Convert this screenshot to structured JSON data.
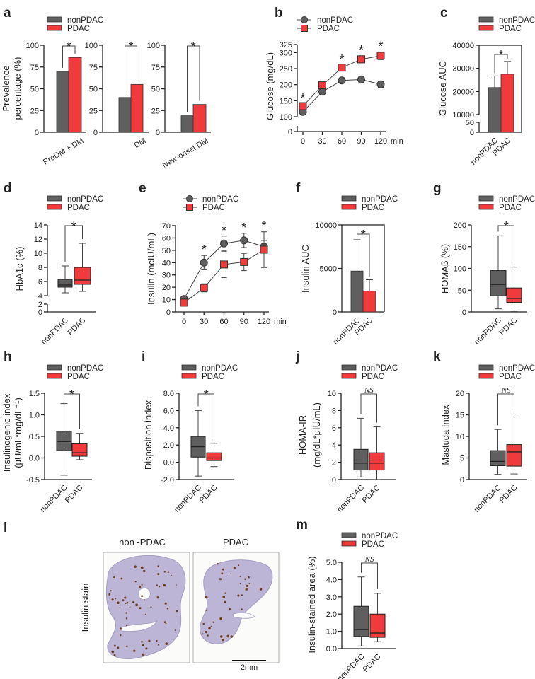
{
  "colors": {
    "nonPDAC": "#5f5f5f",
    "PDAC": "#f03a3c",
    "tissue": "#bcb5d6",
    "stain": "#6b3d22"
  },
  "legend": {
    "nonPDAC": "nonPDAC",
    "PDAC": "PDAC"
  },
  "chart_data": [
    {
      "panel": "a",
      "type": "bar",
      "ylabel": [
        "Prevalence",
        "percentage (%)"
      ],
      "ylim": [
        0,
        100
      ],
      "yticks": [
        "0",
        "25",
        "50",
        "75",
        "100"
      ],
      "categories": [
        "PreDM + DM",
        "DM",
        "New-onset DM"
      ],
      "series": [
        {
          "name": "nonPDAC",
          "values": [
            70,
            40,
            19
          ]
        },
        {
          "name": "PDAC",
          "values": [
            86,
            55,
            32
          ]
        }
      ],
      "significance": [
        "*",
        "*",
        "*"
      ]
    },
    {
      "panel": "b",
      "type": "line",
      "ylabel": [
        "Glucose (mg/dL)"
      ],
      "x": [
        0,
        30,
        60,
        90,
        120
      ],
      "xticks": [
        "0",
        "30",
        "60",
        "90",
        "120"
      ],
      "xunit": "min",
      "y_segments": [
        [
          0,
          10
        ],
        [
          100,
          325
        ]
      ],
      "yticks": [
        "0",
        "100",
        "150",
        "200",
        "250",
        "300",
        "325"
      ],
      "series": [
        {
          "name": "nonPDAC",
          "values": [
            115,
            178,
            213,
            216,
            201
          ],
          "err": [
            6,
            5,
            8,
            10,
            10
          ]
        },
        {
          "name": "PDAC",
          "values": [
            133,
            198,
            253,
            279,
            290
          ],
          "err": [
            7,
            5,
            8,
            11,
            12
          ]
        }
      ],
      "significance": [
        "*",
        "",
        "*",
        "*",
        "*"
      ]
    },
    {
      "panel": "c",
      "type": "bar",
      "ylabel": [
        "Glucose AUC"
      ],
      "y_segments": [
        [
          0,
          50
        ],
        [
          10000,
          40000
        ]
      ],
      "yticks": [
        "0",
        "50",
        "10000",
        "20000",
        "30000",
        "40000"
      ],
      "categories": [
        "nonPDAC",
        "PDAC"
      ],
      "values": [
        21700,
        27500
      ],
      "error": [
        5000,
        5500
      ],
      "significance": "*"
    },
    {
      "panel": "d",
      "type": "box",
      "ylabel": [
        "HbA1c (%)"
      ],
      "y_segments": [
        [
          0,
          2
        ],
        [
          4,
          14
        ]
      ],
      "yticks": [
        "0",
        "2",
        "4",
        "6",
        "8",
        "10",
        "12",
        "14"
      ],
      "categories": [
        "nonPDAC",
        "PDAC"
      ],
      "series": [
        {
          "name": "nonPDAC",
          "min": 4.4,
          "q1": 5.2,
          "median": 5.5,
          "q3": 6.3,
          "max": 8.2
        },
        {
          "name": "PDAC",
          "min": 4.6,
          "q1": 5.6,
          "median": 6.2,
          "q3": 8.0,
          "max": 11.4
        }
      ],
      "significance": "*"
    },
    {
      "panel": "e",
      "type": "line",
      "ylabel": [
        "Insulin (mcIU/mL)"
      ],
      "x": [
        0,
        30,
        60,
        90,
        120
      ],
      "xticks": [
        "0",
        "30",
        "60",
        "90",
        "120"
      ],
      "xunit": "min",
      "ylim": [
        0,
        70
      ],
      "yticks": [
        "0",
        "10",
        "20",
        "30",
        "40",
        "50",
        "60",
        "70"
      ],
      "series": [
        {
          "name": "nonPDAC",
          "values": [
            10.5,
            40,
            55.5,
            58,
            53
          ],
          "err": [
            1.5,
            5.8,
            6,
            5.8,
            5
          ]
        },
        {
          "name": "PDAC",
          "values": [
            7.5,
            19.5,
            38.5,
            40.5,
            50.5
          ],
          "err": [
            1.5,
            3.3,
            10.7,
            7,
            14.5
          ]
        }
      ],
      "significance": [
        "",
        "*",
        "*",
        "*",
        "*"
      ]
    },
    {
      "panel": "f",
      "type": "bar",
      "ylabel": [
        "Insulin AUC"
      ],
      "ylim": [
        0,
        10000
      ],
      "yticks": [
        "0",
        "5000",
        "10000"
      ],
      "categories": [
        "nonPDAC",
        "PDAC"
      ],
      "values": [
        4700,
        2400
      ],
      "error": [
        3600,
        1300
      ],
      "significance": "*"
    },
    {
      "panel": "g",
      "type": "box",
      "ylabel": [
        "HOMAβ (%)"
      ],
      "ylim": [
        0,
        200
      ],
      "yticks": [
        "0",
        "50",
        "100",
        "150",
        "200"
      ],
      "categories": [
        "nonPDAC",
        "PDAC"
      ],
      "series": [
        {
          "name": "nonPDAC",
          "min": 7,
          "q1": 37,
          "median": 63,
          "q3": 95,
          "max": 175
        },
        {
          "name": "PDAC",
          "min": 2,
          "q1": 22,
          "median": 31,
          "q3": 55,
          "max": 103
        }
      ],
      "significance": "*"
    },
    {
      "panel": "h",
      "type": "box",
      "ylabel": [
        "Insulinogenic index",
        "(μU/mL*mg/dL⁻¹)"
      ],
      "ylim": [
        -0.5,
        1.5
      ],
      "yticks": [
        "-0.5",
        "0.0",
        "0.5",
        "1.0",
        "1.5"
      ],
      "categories": [
        "nonPDAC",
        "PDAC"
      ],
      "series": [
        {
          "name": "nonPDAC",
          "min": -0.4,
          "q1": 0.17,
          "median": 0.38,
          "q3": 0.62,
          "max": 1.26
        },
        {
          "name": "PDAC",
          "min": -0.04,
          "q1": 0.04,
          "median": 0.12,
          "q3": 0.33,
          "max": 0.57
        }
      ],
      "significance": "*"
    },
    {
      "panel": "i",
      "type": "box",
      "ylabel": [
        "Disposition index"
      ],
      "ylim": [
        -2,
        8
      ],
      "yticks": [
        "-2.0",
        "0.0",
        "2.0",
        "4.0",
        "6.0",
        "8.0"
      ],
      "categories": [
        "nonPDAC",
        "PDAC"
      ],
      "series": [
        {
          "name": "nonPDAC",
          "min": -1.6,
          "q1": 0.6,
          "median": 1.8,
          "q3": 3.0,
          "max": 6.0
        },
        {
          "name": "PDAC",
          "min": -0.5,
          "q1": 0.2,
          "median": 0.5,
          "q3": 1.1,
          "max": 2.2
        }
      ],
      "significance": "*"
    },
    {
      "panel": "j",
      "type": "box",
      "ylabel": [
        "HOMA-IR",
        "(mg/dL*μIU/mL)"
      ],
      "ylim": [
        0,
        10
      ],
      "yticks": [
        "0",
        "2",
        "4",
        "6",
        "8",
        "10"
      ],
      "categories": [
        "nonPDAC",
        "PDAC"
      ],
      "series": [
        {
          "name": "nonPDAC",
          "min": 0.3,
          "q1": 1.1,
          "median": 1.9,
          "q3": 3.5,
          "max": 7.1
        },
        {
          "name": "PDAC",
          "min": 0.0,
          "q1": 1.1,
          "median": 1.9,
          "q3": 3.1,
          "max": 6.1
        }
      ],
      "significance": "NS"
    },
    {
      "panel": "k",
      "type": "box",
      "ylabel": [
        "Mastuda Index"
      ],
      "ylim": [
        0,
        20
      ],
      "yticks": [
        "0",
        "5",
        "10",
        "15",
        "20"
      ],
      "categories": [
        "nonPDAC",
        "PDAC"
      ],
      "series": [
        {
          "name": "nonPDAC",
          "min": 1.2,
          "q1": 3.2,
          "median": 4.2,
          "q3": 6.7,
          "max": 11.6
        },
        {
          "name": "PDAC",
          "min": 1.3,
          "q1": 3.1,
          "median": 6.4,
          "q3": 8.1,
          "max": 14.5
        }
      ],
      "significance": "NS"
    },
    {
      "panel": "m",
      "type": "box",
      "ylabel": [
        "Insulin-stained area (%)"
      ],
      "ylim": [
        0,
        5
      ],
      "yticks": [
        "0.0",
        "1.0",
        "2.0",
        "3.0",
        "4.0",
        "5.0"
      ],
      "categories": [
        "nonPDAC",
        "PDAC"
      ],
      "series": [
        {
          "name": "nonPDAC",
          "min": 0.15,
          "q1": 0.7,
          "median": 1.1,
          "q3": 2.45,
          "max": 4.15
        },
        {
          "name": "PDAC",
          "min": 0.4,
          "q1": 0.65,
          "median": 0.9,
          "q3": 2.0,
          "max": 3.2
        }
      ],
      "significance": "NS"
    }
  ],
  "panel_l": {
    "label": "l",
    "row_label": "Insulin stain",
    "columns": [
      "non -PDAC",
      "PDAC"
    ],
    "scale_bar": "2mm"
  }
}
